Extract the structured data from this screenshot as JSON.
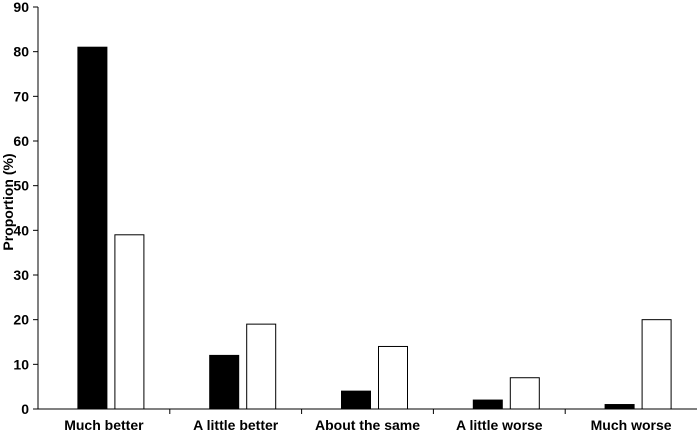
{
  "chart_data": {
    "type": "bar",
    "title": "",
    "xlabel": "",
    "ylabel": "Proportion (%)",
    "ylim": [
      0,
      90
    ],
    "yticks": [
      0,
      10,
      20,
      30,
      40,
      50,
      60,
      70,
      80,
      90
    ],
    "categories": [
      "Much better",
      "A little better",
      "About the same",
      "A little worse",
      "Much worse"
    ],
    "series": [
      {
        "values": [
          81,
          12,
          4,
          2,
          1
        ],
        "color": "#000000"
      },
      {
        "values": [
          39,
          19,
          14,
          7,
          20
        ],
        "color": "#ffffff"
      }
    ],
    "grid": false,
    "legend": "none"
  }
}
